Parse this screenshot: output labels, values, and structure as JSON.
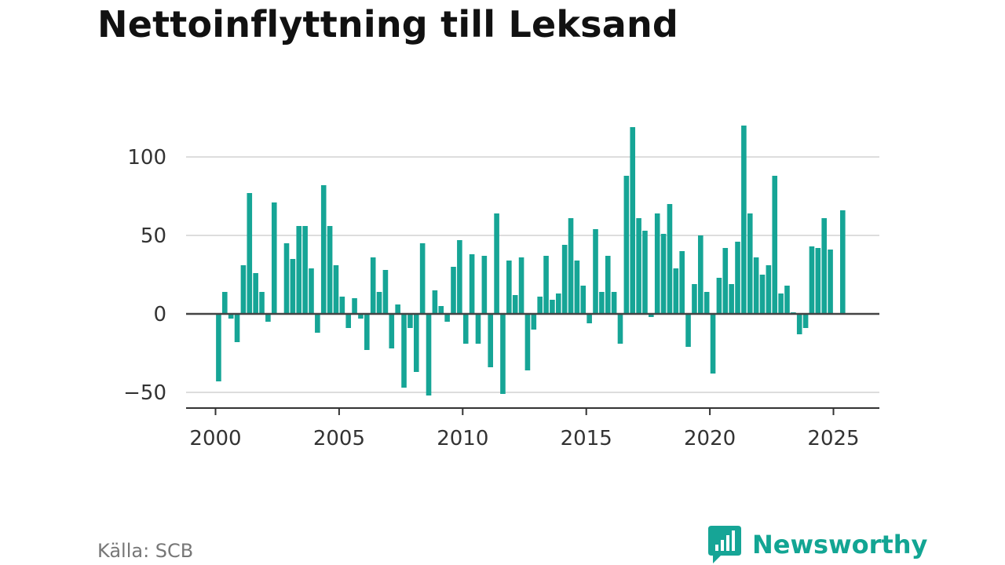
{
  "title": "Nettoinflyttning till Leksand",
  "source": "Källa: SCB",
  "brand": {
    "name": "Newsworthy",
    "icon": "newsworthy-logo-icon"
  },
  "colors": {
    "bar": "#16a596",
    "zero_line": "#444444",
    "grid": "#dddddd",
    "axis": "#333333",
    "text": "#333333"
  },
  "chart_data": {
    "type": "bar",
    "title": "Nettoinflyttning till Leksand",
    "xlabel": "",
    "ylabel": "",
    "ylim": [
      -60,
      120
    ],
    "xlim": [
      1999.6,
      2026.0
    ],
    "yticks": [
      -50,
      0,
      50,
      100
    ],
    "ytick_labels": [
      "−50",
      "0",
      "50",
      "100"
    ],
    "xticks": [
      2000,
      2005,
      2010,
      2015,
      2020,
      2025
    ],
    "xtick_labels": [
      "2000",
      "2005",
      "2010",
      "2015",
      "2020",
      "2025"
    ],
    "grid": true,
    "legend": "none",
    "bar_period": "quarter",
    "x": [
      2000.125,
      2000.375,
      2000.625,
      2000.875,
      2001.125,
      2001.375,
      2001.625,
      2001.875,
      2002.125,
      2002.375,
      2002.625,
      2002.875,
      2003.125,
      2003.375,
      2003.625,
      2003.875,
      2004.125,
      2004.375,
      2004.625,
      2004.875,
      2005.125,
      2005.375,
      2005.625,
      2005.875,
      2006.125,
      2006.375,
      2006.625,
      2006.875,
      2007.125,
      2007.375,
      2007.625,
      2007.875,
      2008.125,
      2008.375,
      2008.625,
      2008.875,
      2009.125,
      2009.375,
      2009.625,
      2009.875,
      2010.125,
      2010.375,
      2010.625,
      2010.875,
      2011.125,
      2011.375,
      2011.625,
      2011.875,
      2012.125,
      2012.375,
      2012.625,
      2012.875,
      2013.125,
      2013.375,
      2013.625,
      2013.875,
      2014.125,
      2014.375,
      2014.625,
      2014.875,
      2015.125,
      2015.375,
      2015.625,
      2015.875,
      2016.125,
      2016.375,
      2016.625,
      2016.875,
      2017.125,
      2017.375,
      2017.625,
      2017.875,
      2018.125,
      2018.375,
      2018.625,
      2018.875,
      2019.125,
      2019.375,
      2019.625,
      2019.875,
      2020.125,
      2020.375,
      2020.625,
      2020.875,
      2021.125,
      2021.375,
      2021.625,
      2021.875,
      2022.125,
      2022.375,
      2022.625,
      2022.875,
      2023.125,
      2023.375,
      2023.625,
      2023.875,
      2024.125,
      2024.375,
      2024.625,
      2024.875,
      2025.375
    ],
    "values": [
      -43,
      14,
      -3,
      -18,
      31,
      77,
      26,
      14,
      -5,
      71,
      0,
      45,
      35,
      56,
      56,
      29,
      -12,
      82,
      56,
      31,
      11,
      -9,
      10,
      -3,
      -23,
      36,
      14,
      28,
      -22,
      6,
      -47,
      -9,
      -37,
      45,
      -52,
      15,
      5,
      -5,
      30,
      47,
      -19,
      38,
      -19,
      37,
      -34,
      64,
      -51,
      34,
      12,
      36,
      -36,
      -10,
      11,
      37,
      9,
      13,
      44,
      61,
      34,
      18,
      -6,
      54,
      14,
      37,
      14,
      -19,
      88,
      119,
      61,
      53,
      -2,
      64,
      51,
      70,
      29,
      40,
      -21,
      19,
      50,
      14,
      -38,
      23,
      42,
      19,
      46,
      120,
      64,
      36,
      25,
      31,
      88,
      13,
      18,
      1,
      -13,
      -9,
      43,
      42,
      61,
      41,
      66
    ]
  }
}
